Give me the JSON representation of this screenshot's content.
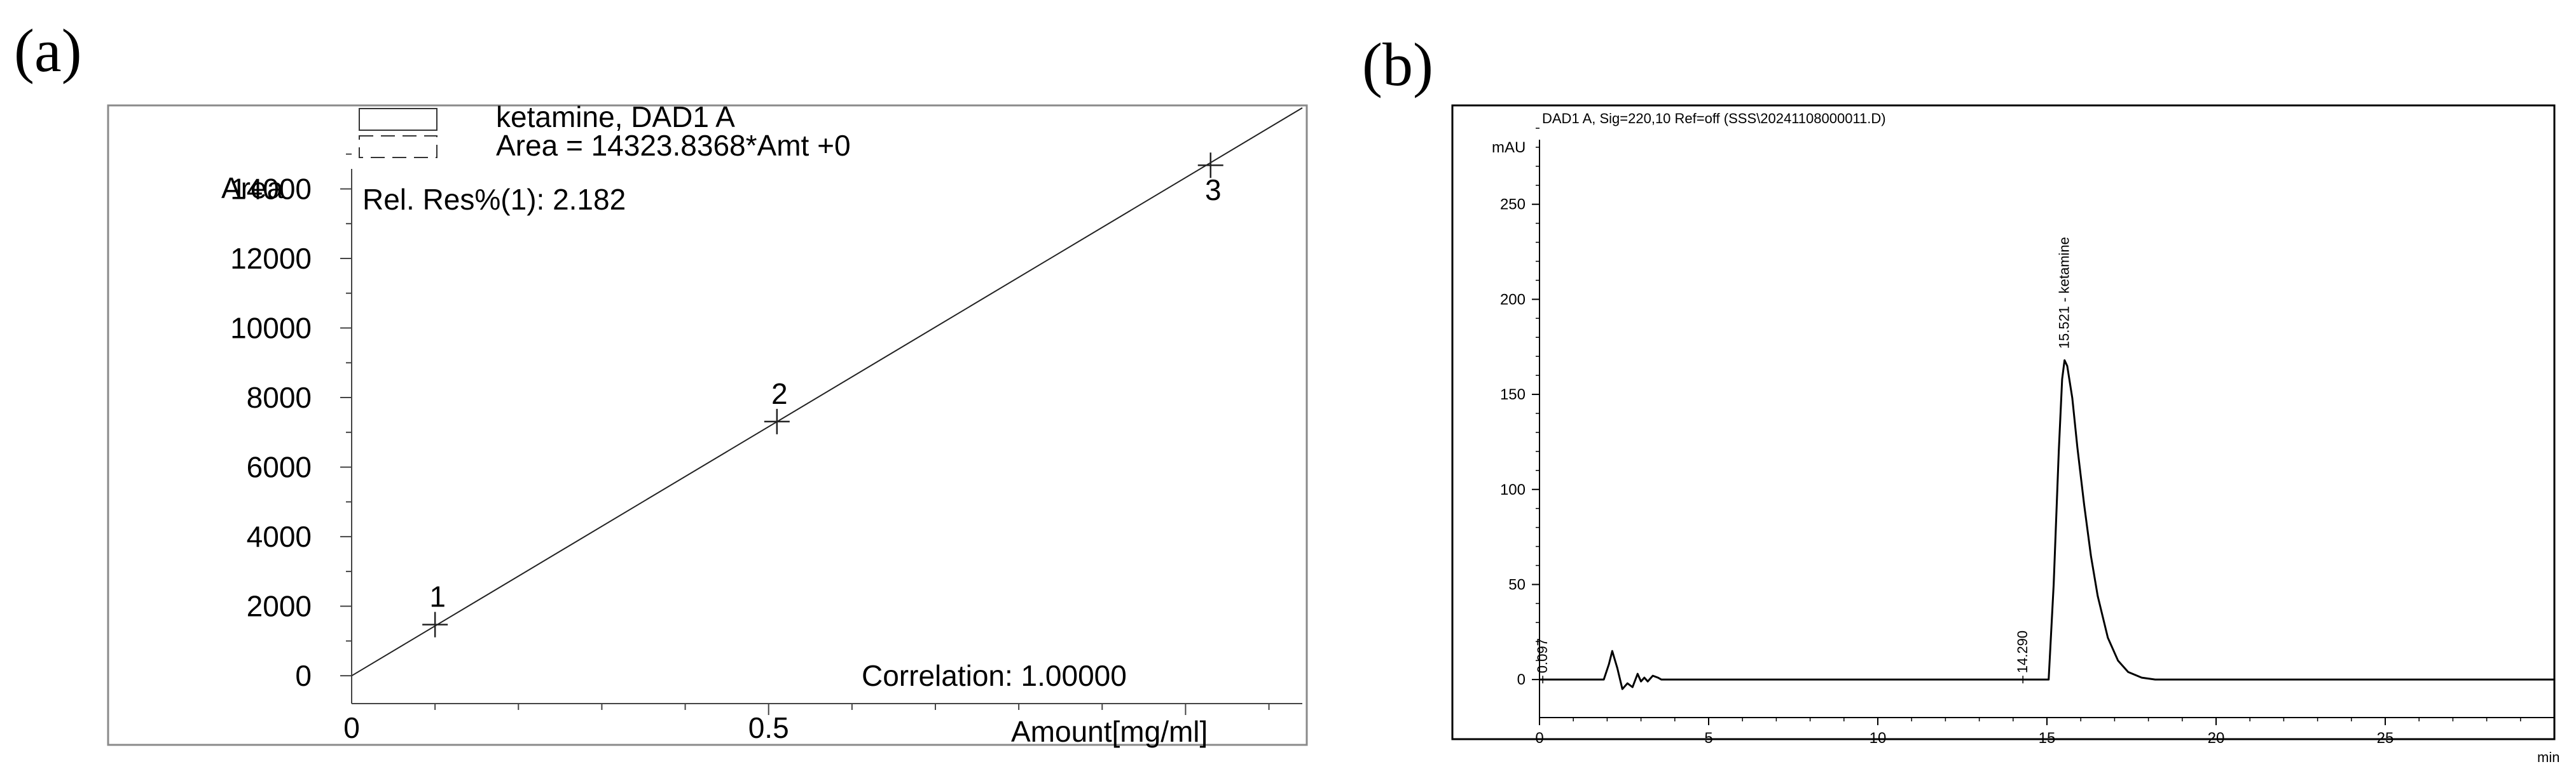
{
  "panels": {
    "a": "(a)",
    "b": "(b)"
  },
  "chart_data": [
    {
      "type": "line",
      "panel": "(a)",
      "legend": [
        "ketamine, DAD1 A",
        "Area = 14323.8368*Amt +0"
      ],
      "annotation_top": "Rel. Res%(1): 2.182",
      "annotation_bottom": "Correlation: 1.00000",
      "ylabel": "Area",
      "xlabel": "Amount[mg/ml]",
      "x_ticks": [
        "0",
        "0.5"
      ],
      "y_ticks": [
        "0",
        "2000",
        "4000",
        "6000",
        "8000",
        "10000",
        "12000",
        "14000"
      ],
      "xlim": [
        0,
        1.14
      ],
      "ylim": [
        -800,
        16400
      ],
      "fit": {
        "slope": 14323.8368,
        "intercept": 0
      },
      "points": [
        {
          "label": "1",
          "x": 0.1,
          "y": 1470
        },
        {
          "label": "2",
          "x": 0.51,
          "y": 7310
        },
        {
          "label": "3",
          "x": 1.03,
          "y": 14680
        }
      ],
      "grid": false
    },
    {
      "type": "line",
      "panel": "(b)",
      "title": "DAD1 A, Sig=220,10 Ref=off (SSS\\20241108000011.D)",
      "ylabel": "mAU",
      "xlabel": "min",
      "x_ticks": [
        "0",
        "5",
        "10",
        "15",
        "20",
        "25"
      ],
      "y_ticks": [
        "0",
        "50",
        "100",
        "150",
        "200",
        "250"
      ],
      "xlim": [
        0,
        30
      ],
      "ylim": [
        -20,
        300
      ],
      "peak_labels": [
        {
          "text": "0.097",
          "x": 0.097
        },
        {
          "text": "14.290",
          "x": 14.29
        },
        {
          "text": "15.521 - ketamine",
          "x": 15.521,
          "height": 168
        }
      ],
      "series": [
        {
          "x": [
            0,
            1.9,
            2.05,
            2.15,
            2.3,
            2.45,
            2.6,
            2.75,
            2.9,
            3.0,
            3.1,
            3.2,
            3.35,
            3.5,
            3.6,
            4.0,
            15.05,
            15.2,
            15.35,
            15.45,
            15.521,
            15.6,
            15.75,
            15.9,
            16.1,
            16.3,
            16.5,
            16.8,
            17.1,
            17.4,
            17.8,
            18.2,
            30
          ],
          "y": [
            0,
            0,
            8,
            15,
            6,
            -5,
            -2,
            -4,
            3,
            -1,
            1,
            -1,
            2,
            1,
            0,
            0,
            0,
            50,
            120,
            158,
            168,
            165,
            148,
            122,
            92,
            65,
            44,
            22,
            10,
            4,
            1,
            0,
            0
          ]
        }
      ],
      "grid": false
    }
  ]
}
